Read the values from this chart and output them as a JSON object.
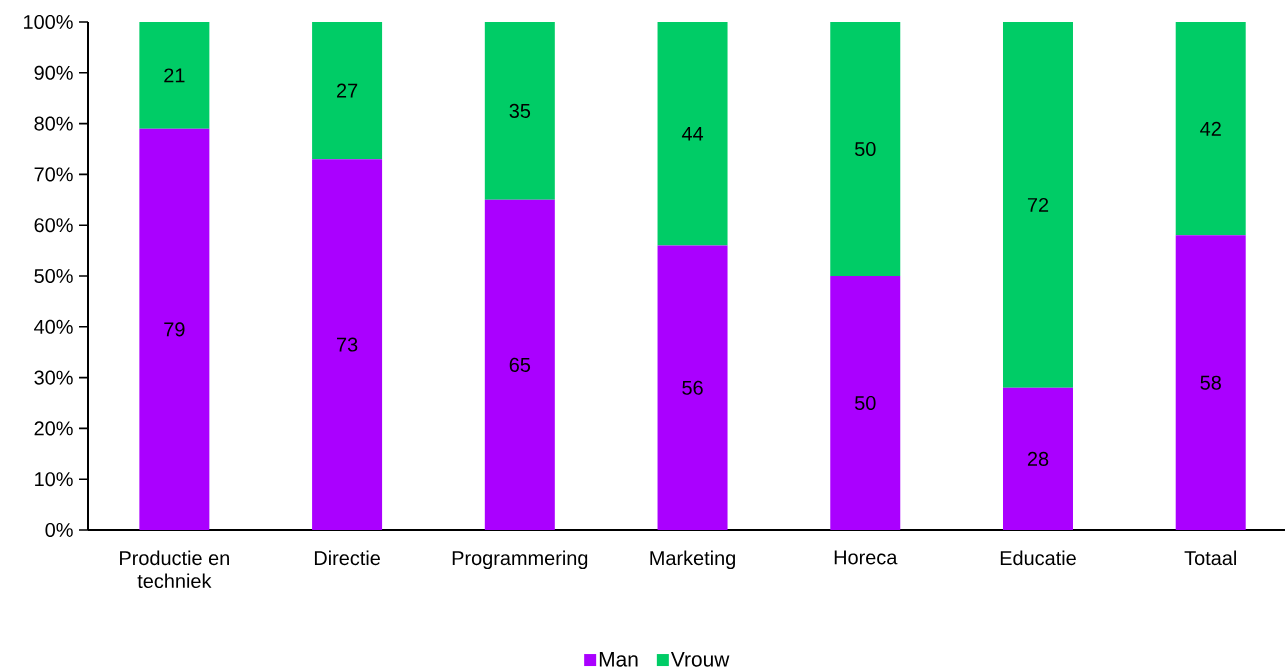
{
  "chart_data": {
    "type": "bar",
    "stacked": true,
    "categories": [
      "Productie en techniek",
      "Directie",
      "Programmering",
      "Marketing",
      "Horeca",
      "Educatie",
      "Totaal"
    ],
    "series": [
      {
        "name": "Man",
        "color": "#aa00ff",
        "values": [
          79,
          73,
          65,
          56,
          50,
          28,
          58
        ]
      },
      {
        "name": "Vrouw",
        "color": "#00cc66",
        "values": [
          21,
          27,
          35,
          44,
          50,
          72,
          42
        ]
      }
    ],
    "ylim": [
      0,
      100
    ],
    "yticks": [
      {
        "value": 0,
        "label": "0%"
      },
      {
        "value": 10,
        "label": "10%"
      },
      {
        "value": 20,
        "label": "20%"
      },
      {
        "value": 30,
        "label": "30%"
      },
      {
        "value": 40,
        "label": "40%"
      },
      {
        "value": 50,
        "label": "50%"
      },
      {
        "value": 60,
        "label": "60%"
      },
      {
        "value": 70,
        "label": "70%"
      },
      {
        "value": 80,
        "label": "80%"
      },
      {
        "value": 90,
        "label": "90%"
      },
      {
        "value": 100,
        "label": "100%"
      }
    ],
    "data_labels": true,
    "legend": "bottom"
  }
}
